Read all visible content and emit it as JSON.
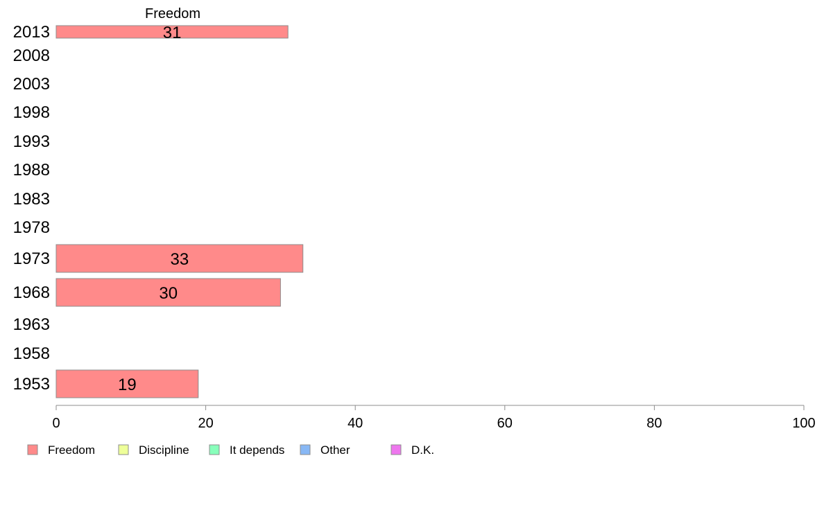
{
  "chart_data": {
    "type": "bar",
    "orientation": "horizontal",
    "title": "Freedom",
    "categories": [
      "2013",
      "2008",
      "2003",
      "1998",
      "1993",
      "1988",
      "1983",
      "1978",
      "1973",
      "1968",
      "1963",
      "1958",
      "1953"
    ],
    "series": [
      {
        "name": "Freedom",
        "color": "#ff8a8a",
        "values": [
          31,
          null,
          null,
          null,
          null,
          null,
          null,
          null,
          33,
          30,
          null,
          null,
          19
        ],
        "labels": [
          "31",
          "",
          "",
          "",
          "",
          "",
          "",
          "",
          "33",
          "30",
          "",
          "",
          "19"
        ]
      }
    ],
    "xlim": [
      0,
      100
    ],
    "xticks": [
      "0",
      "20",
      "40",
      "60",
      "80",
      "100"
    ],
    "grid": false,
    "legend": {
      "placement": "bottom",
      "entries": [
        {
          "name": "Freedom",
          "color": "#ff8a8a"
        },
        {
          "name": "Discipline",
          "color": "#eeff99"
        },
        {
          "name": "It depends",
          "color": "#88ffbb"
        },
        {
          "name": "Other",
          "color": "#88b8f5"
        },
        {
          "name": "D.K.",
          "color": "#ee77ee"
        }
      ]
    }
  }
}
